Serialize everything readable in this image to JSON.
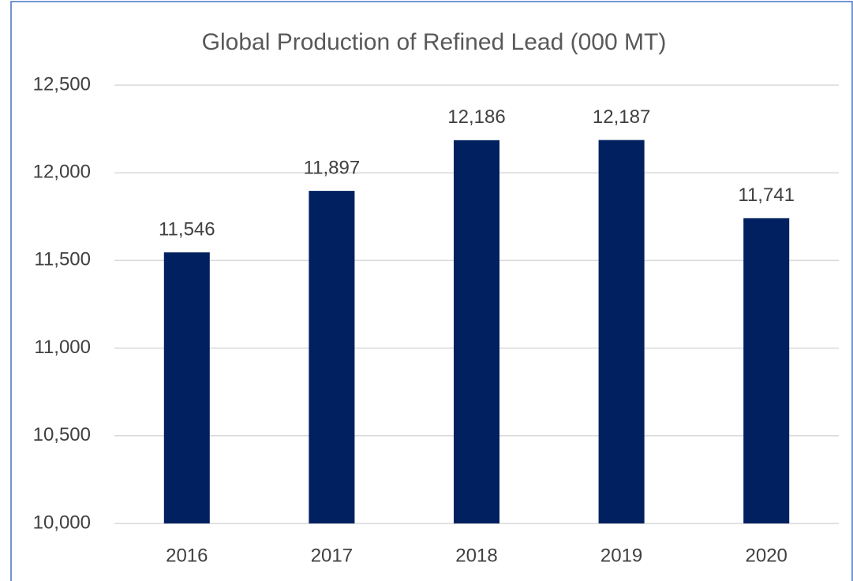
{
  "chart_data": {
    "type": "bar",
    "title": "Global Production of Refined Lead (000 MT)",
    "categories": [
      "2016",
      "2017",
      "2018",
      "2019",
      "2020"
    ],
    "values": [
      11546,
      11897,
      12186,
      12187,
      11741
    ],
    "value_labels": [
      "11,546",
      "11,897",
      "12,186",
      "12,187",
      "11,741"
    ],
    "color": "#002060",
    "ylim": [
      10000,
      12500
    ],
    "yticks": [
      {
        "value": 10000,
        "label": "10,000"
      },
      {
        "value": 10500,
        "label": "10,500"
      },
      {
        "value": 11000,
        "label": "11,000"
      },
      {
        "value": 11500,
        "label": "11,500"
      },
      {
        "value": 12000,
        "label": "12,000"
      },
      {
        "value": 12500,
        "label": "12,500"
      }
    ],
    "grid": true
  }
}
